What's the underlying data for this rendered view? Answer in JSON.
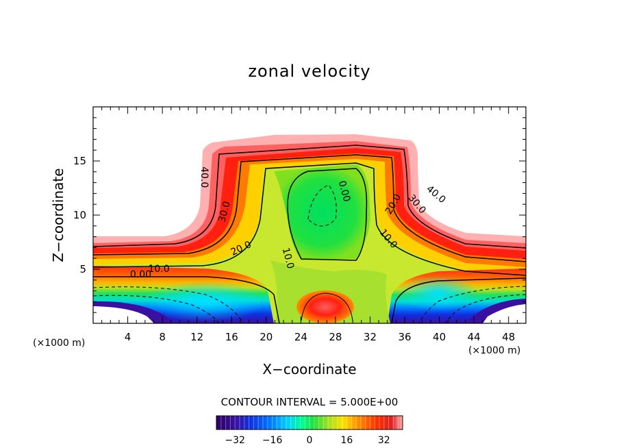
{
  "chart_data": {
    "type": "contour",
    "title": "zonal velocity",
    "xlabel": "X−coordinate",
    "ylabel": "Z−coordinate",
    "x_units": "(×1000 m)",
    "z_units": "(×1000 m)",
    "xlim": [
      0,
      50
    ],
    "ylim": [
      0,
      20
    ],
    "x_ticks": [
      4,
      8,
      12,
      16,
      20,
      24,
      28,
      32,
      36,
      40,
      44,
      48
    ],
    "x_tick_labels": [
      "4",
      "8",
      "12",
      "16",
      "20",
      "24",
      "28",
      "32",
      "36",
      "40",
      "44",
      "48"
    ],
    "y_ticks": [
      5,
      10,
      15
    ],
    "y_tick_labels": [
      "5",
      "10",
      "15"
    ],
    "contour_interval_text": "CONTOUR INTERVAL = 5.000E+00",
    "contour_interval": 5.0,
    "contour_labels": [
      {
        "text": "40.0",
        "x": 12.8,
        "z": 13.5,
        "rotate": 90
      },
      {
        "text": "30.0",
        "x": 15.2,
        "z": 10.3,
        "rotate": -75
      },
      {
        "text": "20.0",
        "x": 17.1,
        "z": 6.9,
        "rotate": -25
      },
      {
        "text": "10.0",
        "x": 7.6,
        "z": 5.0,
        "rotate": 0
      },
      {
        "text": "0.00",
        "x": 5.5,
        "z": 4.5,
        "rotate": 0
      },
      {
        "text": "10.0",
        "x": 22.5,
        "z": 6.0,
        "rotate": 75
      },
      {
        "text": "0.00",
        "x": 29.0,
        "z": 12.2,
        "rotate": 75
      },
      {
        "text": "20.0",
        "x": 34.7,
        "z": 11.0,
        "rotate": -60
      },
      {
        "text": "10.0",
        "x": 34.1,
        "z": 7.8,
        "rotate": 50
      },
      {
        "text": "30.0",
        "x": 37.4,
        "z": 11.0,
        "rotate": 50
      },
      {
        "text": "40.0",
        "x": 39.6,
        "z": 11.9,
        "rotate": 40
      }
    ],
    "colorbar": {
      "range": [
        -40,
        40
      ],
      "ticks": [
        -32,
        -16,
        0,
        16,
        32
      ],
      "tick_labels": [
        "−32",
        "−16",
        "0",
        "16",
        "32"
      ]
    },
    "colormap": [
      "#2a0060",
      "#3a10a0",
      "#1030e0",
      "#0070ff",
      "#00d0ff",
      "#00ff90",
      "#20e040",
      "#a0e020",
      "#ffe000",
      "#ff9000",
      "#ff3000",
      "#e02020",
      "#ffb0b0"
    ]
  }
}
